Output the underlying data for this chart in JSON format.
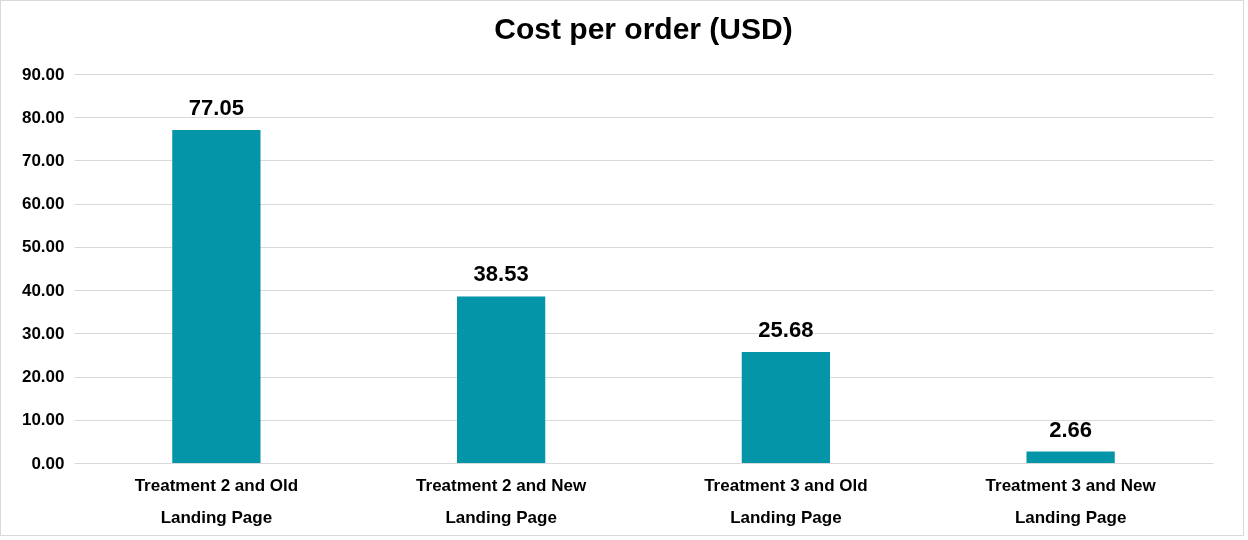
{
  "chart_data": {
    "type": "bar",
    "title": "Cost per order (USD)",
    "categories": [
      "Treatment 2 and Old Landing Page",
      "Treatment 2 and New Landing Page",
      "Treatment 3 and Old Landing Page",
      "Treatment 3 and New Landing Page"
    ],
    "values": [
      77.05,
      38.53,
      25.68,
      2.66
    ],
    "color": "#0495a9",
    "ylim": [
      0,
      90
    ],
    "yticks": [
      {
        "value": 0,
        "label": "0.00"
      },
      {
        "value": 10,
        "label": "10.00"
      },
      {
        "value": 20,
        "label": "20.00"
      },
      {
        "value": 30,
        "label": "30.00"
      },
      {
        "value": 40,
        "label": "40.00"
      },
      {
        "value": 50,
        "label": "50.00"
      },
      {
        "value": 60,
        "label": "60.00"
      },
      {
        "value": 70,
        "label": "70.00"
      },
      {
        "value": 80,
        "label": "80.00"
      },
      {
        "value": 90,
        "label": "90.00"
      }
    ],
    "grid": "y",
    "data_labels": true
  }
}
